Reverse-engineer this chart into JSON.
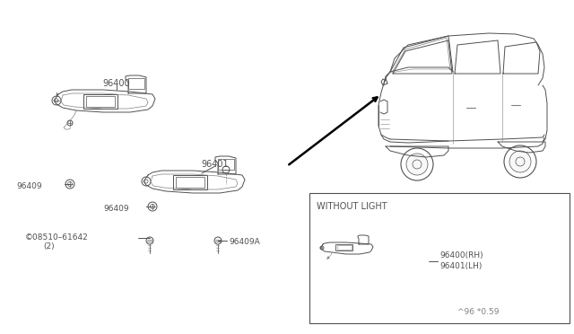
{
  "bg_color": "#ffffff",
  "gray": "#505050",
  "lgray": "#808080",
  "lw": 0.7,
  "fs_label": 7.0,
  "fs_small": 6.5,
  "version_text": "^96 *0.59",
  "without_light_text": "WITHOUT LIGHT",
  "part_96400": "96400",
  "part_96401": "96401",
  "part_96409": "96409",
  "part_96409A": "96409A",
  "part_screw": "©08510-61642",
  "part_screw2": "(2)",
  "inset_96400": "96400(RH)",
  "inset_96401": "96401(LH)"
}
